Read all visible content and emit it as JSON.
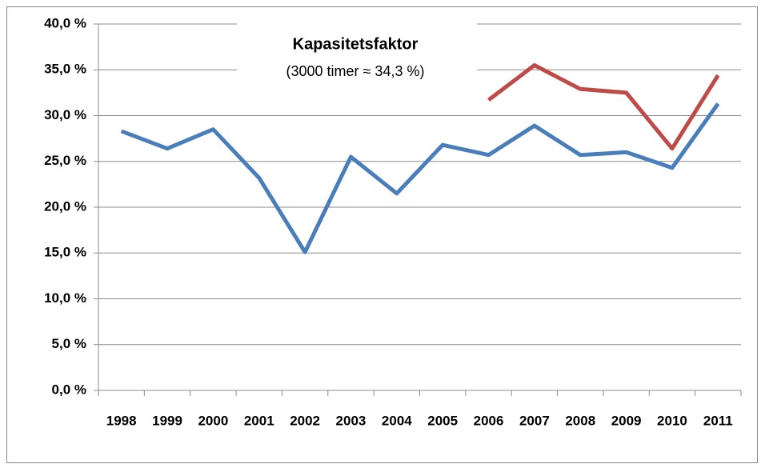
{
  "chart_data": {
    "type": "line",
    "title": "Kapasitetsfaktor",
    "subtitle": "(3000 timer ≈ 34,3 %)",
    "categories": [
      "1998",
      "1999",
      "2000",
      "2001",
      "2002",
      "2003",
      "2004",
      "2005",
      "2006",
      "2007",
      "2008",
      "2009",
      "2010",
      "2011"
    ],
    "series": [
      {
        "color": "#4a7ebb",
        "values": [
          28.3,
          26.4,
          28.5,
          23.2,
          15.1,
          25.5,
          21.5,
          26.8,
          25.7,
          28.9,
          25.7,
          26.0,
          24.3,
          31.3
        ]
      },
      {
        "color": "#be4b48",
        "values": [
          null,
          null,
          null,
          null,
          null,
          null,
          null,
          null,
          31.7,
          35.5,
          32.9,
          32.5,
          26.4,
          34.4
        ]
      }
    ],
    "ylim": [
      0,
      40
    ],
    "yticks": [
      {
        "value": 0,
        "label": "0,0 %"
      },
      {
        "value": 5,
        "label": "5,0 %"
      },
      {
        "value": 10,
        "label": "10,0 %"
      },
      {
        "value": 15,
        "label": "15,0 %"
      },
      {
        "value": 20,
        "label": "20,0 %"
      },
      {
        "value": 25,
        "label": "25,0 %"
      },
      {
        "value": 30,
        "label": "30,0 %"
      },
      {
        "value": 35,
        "label": "35,0 %"
      },
      {
        "value": 40,
        "label": "40,0 %"
      }
    ],
    "grid": true
  }
}
